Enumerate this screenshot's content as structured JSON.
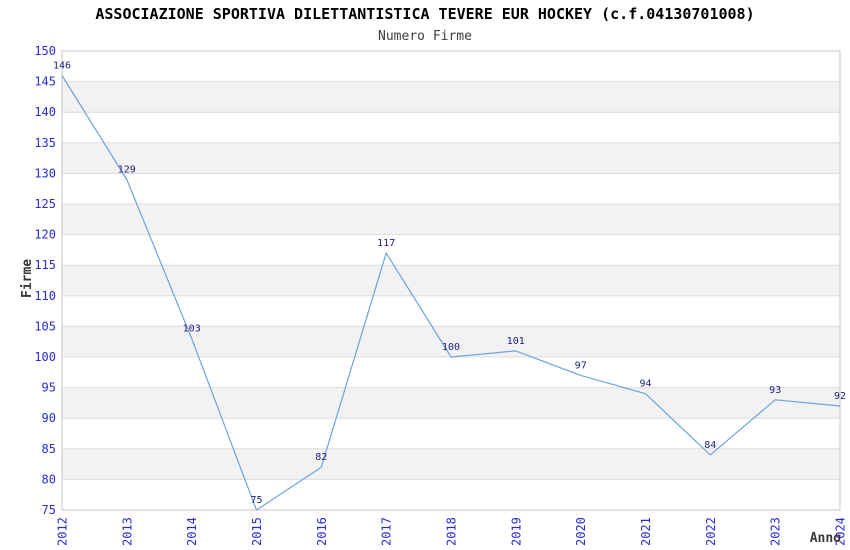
{
  "chart_data": {
    "type": "line",
    "title": "ASSOCIAZIONE SPORTIVA DILETTANTISTICA TEVERE EUR HOCKEY (c.f.04130701008)",
    "subtitle": "Numero Firme",
    "xlabel": "Anno",
    "ylabel": "Firme",
    "categories": [
      "2012",
      "2013",
      "2014",
      "2015",
      "2016",
      "2017",
      "2018",
      "2019",
      "2020",
      "2021",
      "2022",
      "2023",
      "2024"
    ],
    "values": [
      146,
      129,
      103,
      75,
      82,
      117,
      100,
      101,
      97,
      94,
      84,
      93,
      92
    ],
    "ylim": [
      75,
      150
    ],
    "ytick_step": 5,
    "data_labels_visible": true,
    "grid": "horizontal-lines-with-alternating-bands",
    "legend": "none",
    "colors": {
      "line": "#6fa3de",
      "data_label": "#202080",
      "tick_label": "#2b2bd5",
      "band": "#f2f2f2",
      "gridline": "#dcdcdc",
      "plot_border": "#c8c8c8",
      "plot_background": "#ffffff",
      "page_background": "#ffffff",
      "title": "#000000",
      "axis_title": "#383838"
    }
  }
}
